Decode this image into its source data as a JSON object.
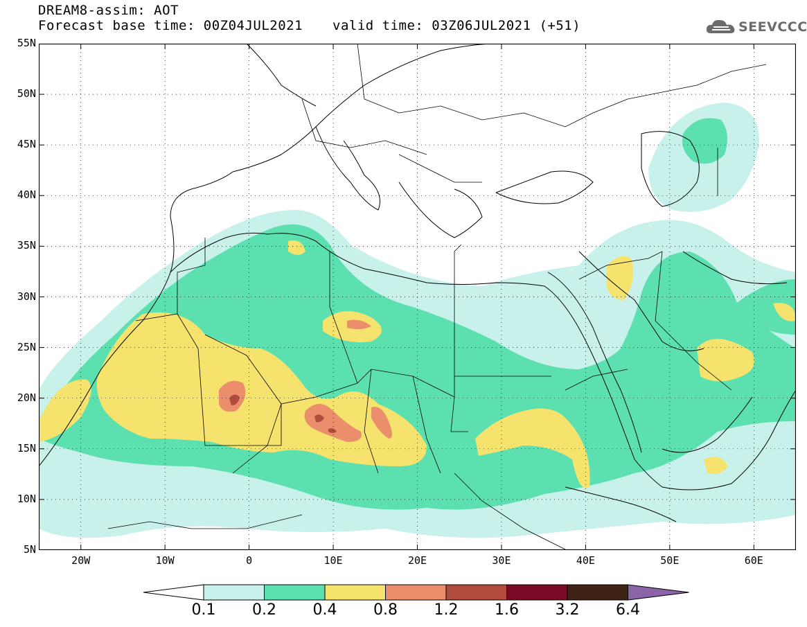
{
  "header": {
    "title": "DREAM8-assim: AOT",
    "base_time": "Forecast base time: 00Z04JUL2021",
    "valid_time": "valid time: 03Z06JUL2021 (+51)",
    "logo_text": "SEEVCCC"
  },
  "map": {
    "lon_range": [
      -25,
      65
    ],
    "lat_range": [
      5,
      55
    ],
    "lat_labels": [
      "55N",
      "50N",
      "45N",
      "40N",
      "35N",
      "30N",
      "25N",
      "20N",
      "15N",
      "10N",
      "5N"
    ],
    "lon_labels": [
      "20W",
      "10W",
      "0",
      "10E",
      "20E",
      "30E",
      "40E",
      "50E",
      "60E"
    ],
    "grid": "dotted"
  },
  "legend": {
    "thresholds": [
      "0.1",
      "0.2",
      "0.4",
      "0.8",
      "1.2",
      "1.6",
      "3.2",
      "6.4"
    ],
    "colors": [
      "#ffffff",
      "#c8f1eb",
      "#5ce0b0",
      "#f5e36e",
      "#ea8e6b",
      "#b04b3e",
      "#7a0a26",
      "#3e2214",
      "#8b64a8"
    ]
  }
}
